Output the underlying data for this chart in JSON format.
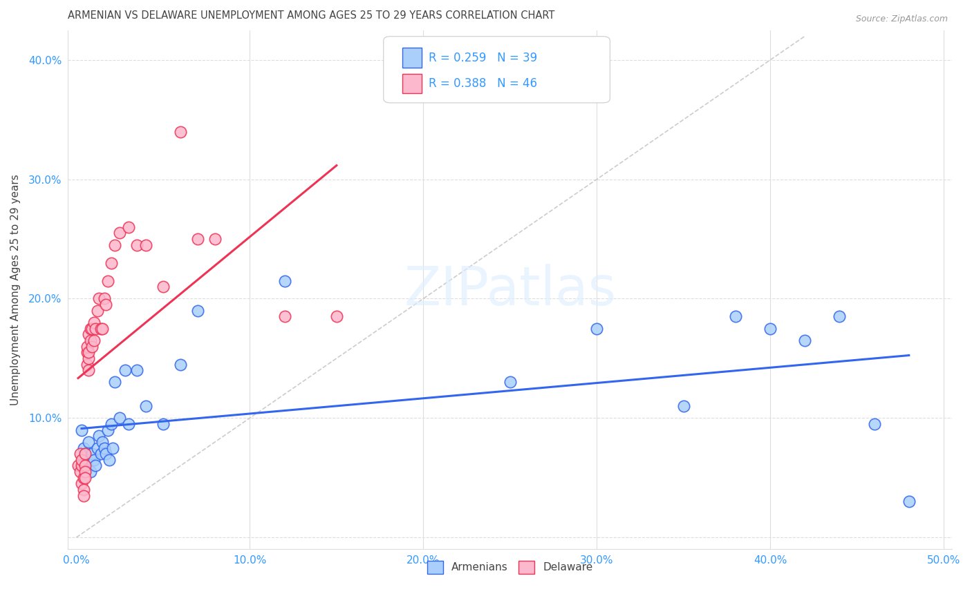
{
  "title": "ARMENIAN VS DELAWARE UNEMPLOYMENT AMONG AGES 25 TO 29 YEARS CORRELATION CHART",
  "source": "Source: ZipAtlas.com",
  "ylabel": "Unemployment Among Ages 25 to 29 years",
  "x_ticks": [
    0.0,
    0.1,
    0.2,
    0.3,
    0.4,
    0.5
  ],
  "x_tick_labels": [
    "0.0%",
    "10.0%",
    "20.0%",
    "30.0%",
    "40.0%",
    "50.0%"
  ],
  "y_ticks": [
    0.0,
    0.1,
    0.2,
    0.3,
    0.4
  ],
  "y_tick_labels": [
    "",
    "10.0%",
    "20.0%",
    "30.0%",
    "40.0%"
  ],
  "xlim": [
    -0.005,
    0.505
  ],
  "ylim": [
    -0.01,
    0.425
  ],
  "legend_labels": [
    "Armenians",
    "Delaware"
  ],
  "R_armenian": 0.259,
  "N_armenian": 39,
  "R_delaware": 0.388,
  "N_delaware": 46,
  "armenian_color": "#aacffa",
  "delaware_color": "#fcb8cc",
  "trend_armenian_color": "#3366ee",
  "trend_delaware_color": "#ee3355",
  "background_color": "#ffffff",
  "grid_color": "#dddddd",
  "title_color": "#444444",
  "axis_label_color": "#3399ff",
  "armenian_x": [
    0.003,
    0.004,
    0.005,
    0.005,
    0.006,
    0.007,
    0.008,
    0.009,
    0.01,
    0.011,
    0.012,
    0.013,
    0.014,
    0.015,
    0.016,
    0.017,
    0.018,
    0.019,
    0.02,
    0.021,
    0.022,
    0.025,
    0.028,
    0.03,
    0.035,
    0.04,
    0.05,
    0.06,
    0.07,
    0.12,
    0.25,
    0.3,
    0.35,
    0.38,
    0.4,
    0.42,
    0.44,
    0.46,
    0.48
  ],
  "armenian_y": [
    0.09,
    0.075,
    0.07,
    0.06,
    0.065,
    0.08,
    0.055,
    0.07,
    0.065,
    0.06,
    0.075,
    0.085,
    0.07,
    0.08,
    0.075,
    0.07,
    0.09,
    0.065,
    0.095,
    0.075,
    0.13,
    0.1,
    0.14,
    0.095,
    0.14,
    0.11,
    0.095,
    0.145,
    0.19,
    0.215,
    0.13,
    0.175,
    0.11,
    0.185,
    0.175,
    0.165,
    0.185,
    0.095,
    0.03
  ],
  "delaware_x": [
    0.001,
    0.002,
    0.002,
    0.003,
    0.003,
    0.003,
    0.004,
    0.004,
    0.004,
    0.005,
    0.005,
    0.005,
    0.005,
    0.006,
    0.006,
    0.006,
    0.007,
    0.007,
    0.007,
    0.007,
    0.008,
    0.008,
    0.009,
    0.009,
    0.01,
    0.01,
    0.011,
    0.012,
    0.013,
    0.014,
    0.015,
    0.016,
    0.017,
    0.018,
    0.02,
    0.022,
    0.025,
    0.03,
    0.035,
    0.04,
    0.05,
    0.06,
    0.07,
    0.08,
    0.12,
    0.15
  ],
  "delaware_y": [
    0.06,
    0.055,
    0.07,
    0.06,
    0.065,
    0.045,
    0.05,
    0.04,
    0.035,
    0.07,
    0.06,
    0.055,
    0.05,
    0.145,
    0.155,
    0.16,
    0.14,
    0.15,
    0.155,
    0.17,
    0.165,
    0.175,
    0.175,
    0.16,
    0.18,
    0.165,
    0.175,
    0.19,
    0.2,
    0.175,
    0.175,
    0.2,
    0.195,
    0.215,
    0.23,
    0.245,
    0.255,
    0.26,
    0.245,
    0.245,
    0.21,
    0.34,
    0.25,
    0.25,
    0.185,
    0.185
  ],
  "watermark": "ZIPatlas",
  "ref_line_x": [
    0.0,
    0.42
  ],
  "ref_line_y": [
    0.0,
    0.42
  ]
}
